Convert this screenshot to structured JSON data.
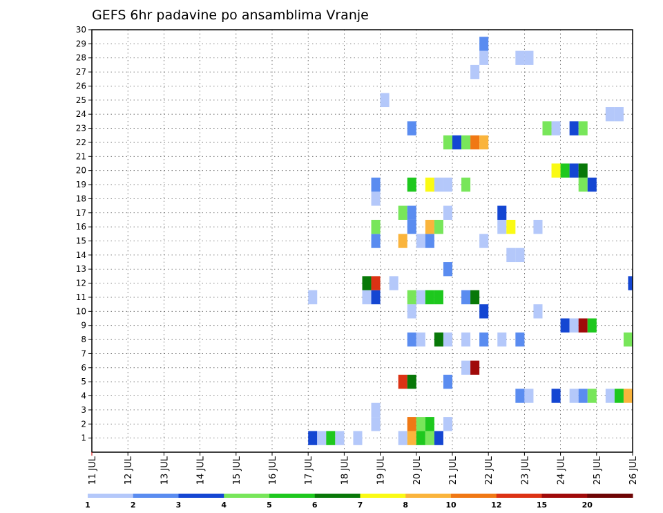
{
  "chart_data": {
    "type": "heatmap",
    "title": "GEFS 6hr padavine po ansamblima Vranje",
    "xlabel": "",
    "ylabel": "",
    "x_ticks": [
      "11 JUL",
      "12 JUL",
      "13 JUL",
      "14 JUL",
      "15 JUL",
      "16 JUL",
      "17 JUL",
      "18 JUL",
      "19 JUL",
      "20 JUL",
      "21 JUL",
      "22 JUL",
      "23 JUL",
      "24 JUL",
      "25 JUL",
      "26 JUL"
    ],
    "y_ticks": [
      1,
      2,
      3,
      4,
      5,
      6,
      7,
      8,
      9,
      10,
      11,
      12,
      13,
      14,
      15,
      16,
      17,
      18,
      19,
      20,
      21,
      22,
      23,
      24,
      25,
      26,
      27,
      28,
      29,
      30
    ],
    "xlim_days": [
      11,
      26
    ],
    "ylim": [
      0,
      30
    ],
    "grid": true,
    "colorbar": {
      "labels": [
        "1",
        "2",
        "3",
        "4",
        "5",
        "6",
        "7",
        "8",
        "10",
        "12",
        "15",
        "20"
      ],
      "colors": [
        "#b4c8fa",
        "#5a8cf0",
        "#1446d2",
        "#78e65a",
        "#1ec81e",
        "#087808",
        "#fafa14",
        "#fab43c",
        "#f07814",
        "#dc3214",
        "#a00a0a",
        "#6e0505"
      ]
    },
    "cells": [
      {
        "day": 17.125,
        "member": 1,
        "level": 2
      },
      {
        "day": 17.375,
        "member": 1,
        "level": 0
      },
      {
        "day": 17.625,
        "member": 1,
        "level": 4
      },
      {
        "day": 17.875,
        "member": 1,
        "level": 0
      },
      {
        "day": 18.375,
        "member": 1,
        "level": 0
      },
      {
        "day": 19.625,
        "member": 1,
        "level": 0
      },
      {
        "day": 19.875,
        "member": 1,
        "level": 7
      },
      {
        "day": 20.125,
        "member": 1,
        "level": 4
      },
      {
        "day": 20.375,
        "member": 1,
        "level": 3
      },
      {
        "day": 20.625,
        "member": 1,
        "level": 2
      },
      {
        "day": 18.875,
        "member": 2,
        "level": 0
      },
      {
        "day": 19.875,
        "member": 2,
        "level": 8
      },
      {
        "day": 20.125,
        "member": 2,
        "level": 3
      },
      {
        "day": 20.375,
        "member": 2,
        "level": 4
      },
      {
        "day": 20.875,
        "member": 2,
        "level": 0
      },
      {
        "day": 18.875,
        "member": 3,
        "level": 0
      },
      {
        "day": 22.875,
        "member": 4,
        "level": 1
      },
      {
        "day": 23.125,
        "member": 4,
        "level": 0
      },
      {
        "day": 23.875,
        "member": 4,
        "level": 2
      },
      {
        "day": 24.375,
        "member": 4,
        "level": 0
      },
      {
        "day": 24.625,
        "member": 4,
        "level": 1
      },
      {
        "day": 24.875,
        "member": 4,
        "level": 3
      },
      {
        "day": 25.375,
        "member": 4,
        "level": 0
      },
      {
        "day": 25.625,
        "member": 4,
        "level": 4
      },
      {
        "day": 25.875,
        "member": 4,
        "level": 7
      },
      {
        "day": 19.625,
        "member": 5,
        "level": 9
      },
      {
        "day": 19.875,
        "member": 5,
        "level": 5
      },
      {
        "day": 20.875,
        "member": 5,
        "level": 1
      },
      {
        "day": 21.375,
        "member": 6,
        "level": 0
      },
      {
        "day": 21.625,
        "member": 6,
        "level": 10
      },
      {
        "day": 19.875,
        "member": 8,
        "level": 1
      },
      {
        "day": 20.125,
        "member": 8,
        "level": 0
      },
      {
        "day": 20.625,
        "member": 8,
        "level": 5
      },
      {
        "day": 20.875,
        "member": 8,
        "level": 0
      },
      {
        "day": 21.375,
        "member": 8,
        "level": 0
      },
      {
        "day": 21.875,
        "member": 8,
        "level": 1
      },
      {
        "day": 22.375,
        "member": 8,
        "level": 0
      },
      {
        "day": 22.875,
        "member": 8,
        "level": 1
      },
      {
        "day": 25.875,
        "member": 8,
        "level": 3
      },
      {
        "day": 24.125,
        "member": 9,
        "level": 2
      },
      {
        "day": 24.375,
        "member": 9,
        "level": 0
      },
      {
        "day": 24.625,
        "member": 9,
        "level": 10
      },
      {
        "day": 24.875,
        "member": 9,
        "level": 4
      },
      {
        "day": 19.875,
        "member": 10,
        "level": 0
      },
      {
        "day": 21.875,
        "member": 10,
        "level": 2
      },
      {
        "day": 23.375,
        "member": 10,
        "level": 0
      },
      {
        "day": 17.125,
        "member": 11,
        "level": 0
      },
      {
        "day": 18.625,
        "member": 11,
        "level": 0
      },
      {
        "day": 18.875,
        "member": 11,
        "level": 2
      },
      {
        "day": 19.875,
        "member": 11,
        "level": 3
      },
      {
        "day": 20.125,
        "member": 11,
        "level": 0
      },
      {
        "day": 20.375,
        "member": 11,
        "level": 4
      },
      {
        "day": 20.625,
        "member": 11,
        "level": 4
      },
      {
        "day": 21.375,
        "member": 11,
        "level": 1
      },
      {
        "day": 21.625,
        "member": 11,
        "level": 5
      },
      {
        "day": 18.625,
        "member": 12,
        "level": 5
      },
      {
        "day": 18.875,
        "member": 12,
        "level": 9
      },
      {
        "day": 19.375,
        "member": 12,
        "level": 0
      },
      {
        "day": 26.0,
        "member": 12,
        "level": 2
      },
      {
        "day": 20.875,
        "member": 13,
        "level": 1
      },
      {
        "day": 22.625,
        "member": 14,
        "level": 0
      },
      {
        "day": 22.875,
        "member": 14,
        "level": 0
      },
      {
        "day": 18.875,
        "member": 15,
        "level": 1
      },
      {
        "day": 19.625,
        "member": 15,
        "level": 7
      },
      {
        "day": 20.125,
        "member": 15,
        "level": 0
      },
      {
        "day": 20.375,
        "member": 15,
        "level": 1
      },
      {
        "day": 21.875,
        "member": 15,
        "level": 0
      },
      {
        "day": 18.875,
        "member": 16,
        "level": 3
      },
      {
        "day": 19.875,
        "member": 16,
        "level": 1
      },
      {
        "day": 20.375,
        "member": 16,
        "level": 7
      },
      {
        "day": 20.625,
        "member": 16,
        "level": 3
      },
      {
        "day": 22.375,
        "member": 16,
        "level": 0
      },
      {
        "day": 22.625,
        "member": 16,
        "level": 6
      },
      {
        "day": 23.375,
        "member": 16,
        "level": 0
      },
      {
        "day": 19.625,
        "member": 17,
        "level": 3
      },
      {
        "day": 19.875,
        "member": 17,
        "level": 1
      },
      {
        "day": 20.875,
        "member": 17,
        "level": 0
      },
      {
        "day": 22.375,
        "member": 17,
        "level": 2
      },
      {
        "day": 18.875,
        "member": 18,
        "level": 0
      },
      {
        "day": 18.875,
        "member": 19,
        "level": 1
      },
      {
        "day": 19.875,
        "member": 19,
        "level": 4
      },
      {
        "day": 20.375,
        "member": 19,
        "level": 6
      },
      {
        "day": 20.625,
        "member": 19,
        "level": 0
      },
      {
        "day": 20.875,
        "member": 19,
        "level": 0
      },
      {
        "day": 21.375,
        "member": 19,
        "level": 3
      },
      {
        "day": 24.625,
        "member": 19,
        "level": 3
      },
      {
        "day": 24.875,
        "member": 19,
        "level": 2
      },
      {
        "day": 23.875,
        "member": 20,
        "level": 6
      },
      {
        "day": 24.125,
        "member": 20,
        "level": 4
      },
      {
        "day": 24.375,
        "member": 20,
        "level": 2
      },
      {
        "day": 24.625,
        "member": 20,
        "level": 5
      },
      {
        "day": 20.875,
        "member": 22,
        "level": 3
      },
      {
        "day": 21.125,
        "member": 22,
        "level": 2
      },
      {
        "day": 21.375,
        "member": 22,
        "level": 3
      },
      {
        "day": 21.625,
        "member": 22,
        "level": 8
      },
      {
        "day": 21.875,
        "member": 22,
        "level": 7
      },
      {
        "day": 19.875,
        "member": 23,
        "level": 1
      },
      {
        "day": 23.625,
        "member": 23,
        "level": 3
      },
      {
        "day": 23.875,
        "member": 23,
        "level": 0
      },
      {
        "day": 24.375,
        "member": 23,
        "level": 2
      },
      {
        "day": 24.625,
        "member": 23,
        "level": 3
      },
      {
        "day": 25.375,
        "member": 24,
        "level": 0
      },
      {
        "day": 25.625,
        "member": 24,
        "level": 0
      },
      {
        "day": 19.125,
        "member": 25,
        "level": 0
      },
      {
        "day": 21.625,
        "member": 27,
        "level": 0
      },
      {
        "day": 21.875,
        "member": 28,
        "level": 0
      },
      {
        "day": 22.875,
        "member": 28,
        "level": 0
      },
      {
        "day": 23.125,
        "member": 28,
        "level": 0
      },
      {
        "day": 21.875,
        "member": 29,
        "level": 1
      }
    ]
  }
}
